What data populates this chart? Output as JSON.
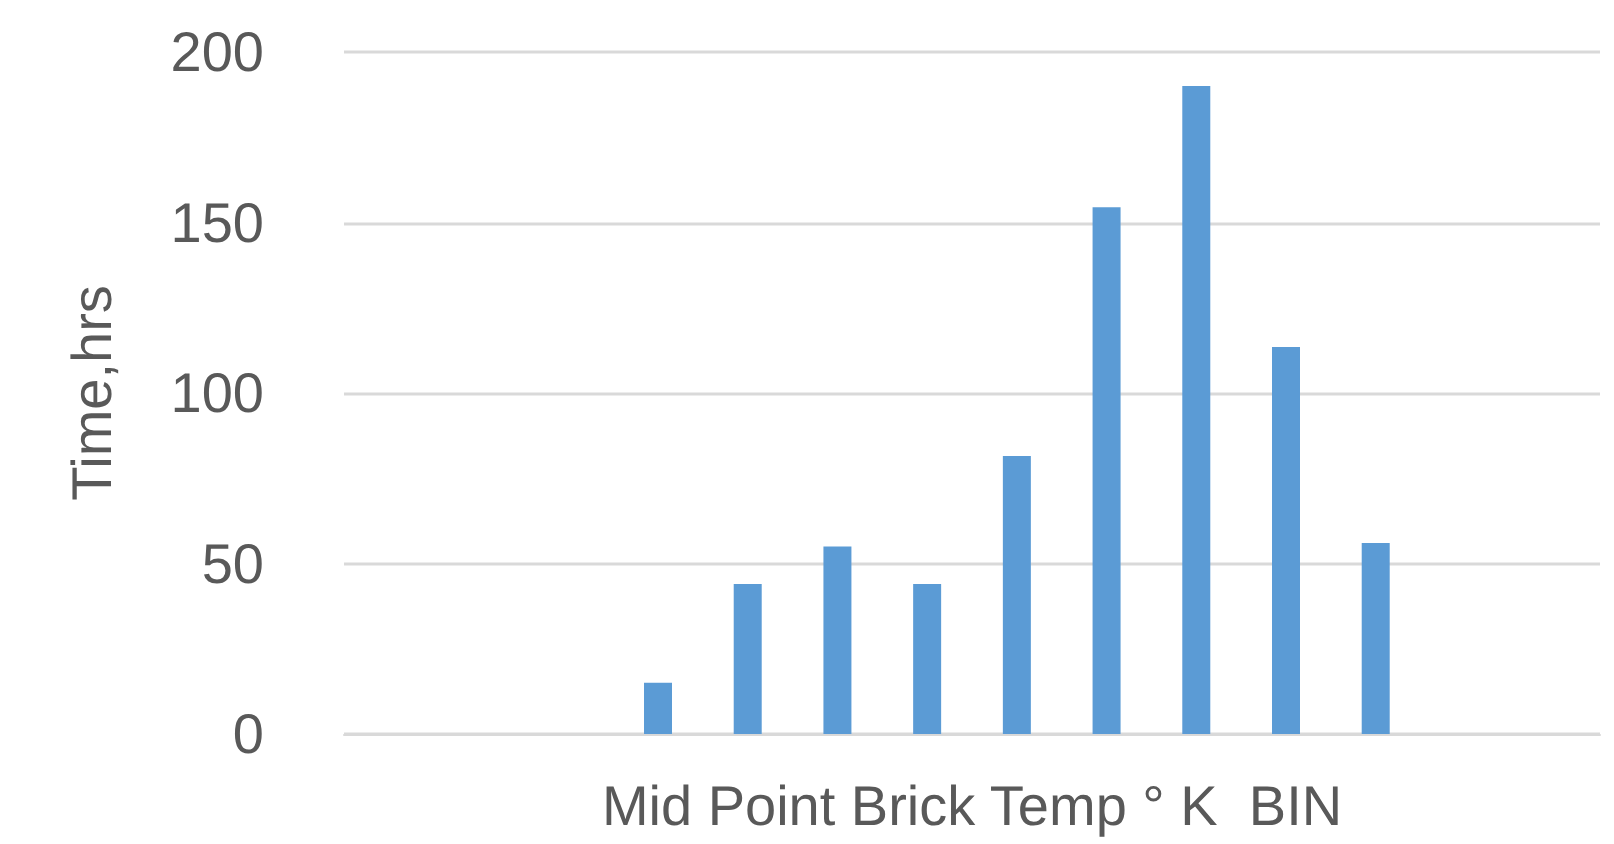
{
  "chart_data": {
    "type": "bar",
    "xlabel": "Mid Point Brick Temp ° K  BIN",
    "ylabel": "Time,hrs",
    "categories": [
      null,
      null,
      null,
      null,
      null,
      null,
      null,
      null,
      null,
      null,
      null,
      null,
      null,
      null
    ],
    "series": [
      {
        "color": "#5b9bd5",
        "values": [
          null,
          null,
          null,
          15,
          44,
          55,
          44,
          81.5,
          154.5,
          190,
          113.5,
          56,
          null,
          null
        ]
      }
    ],
    "ylim": [
      0,
      200
    ],
    "yticks": [
      0,
      50,
      100,
      150,
      200
    ],
    "grid": "y"
  }
}
